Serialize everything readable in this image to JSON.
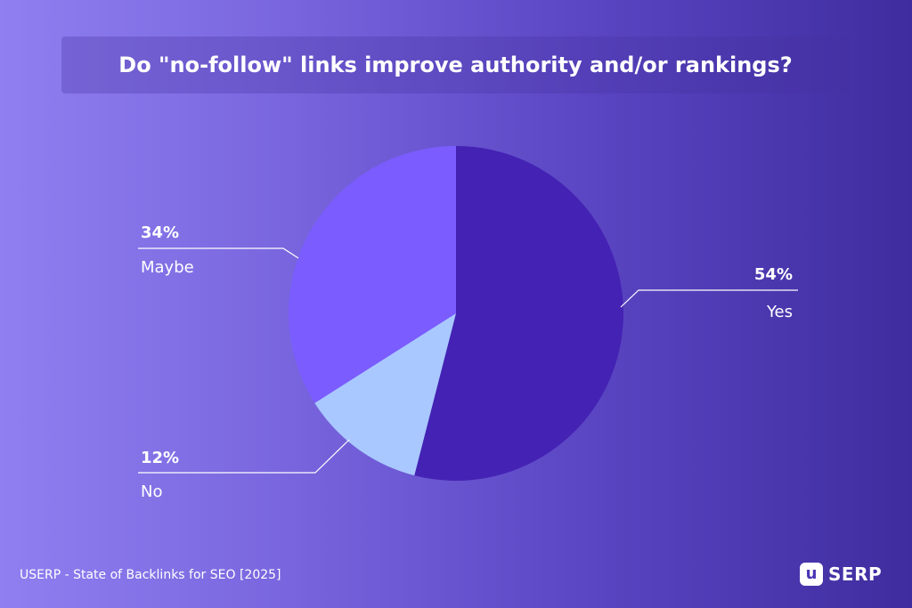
{
  "chart_data": {
    "type": "pie",
    "title": "Do \"no-follow\" links improve authority and/or rankings?",
    "slices": [
      {
        "label": "Yes",
        "value": 54,
        "value_label": "54%",
        "color": "#4422b4"
      },
      {
        "label": "No",
        "value": 12,
        "value_label": "12%",
        "color": "#a9c8ff"
      },
      {
        "label": "Maybe",
        "value": 34,
        "value_label": "34%",
        "color": "#7b5cff"
      }
    ]
  },
  "footer": {
    "source": "USERP - State of Backlinks for SEO [2025]"
  },
  "logo": {
    "mark": "u",
    "text": "SERP"
  }
}
